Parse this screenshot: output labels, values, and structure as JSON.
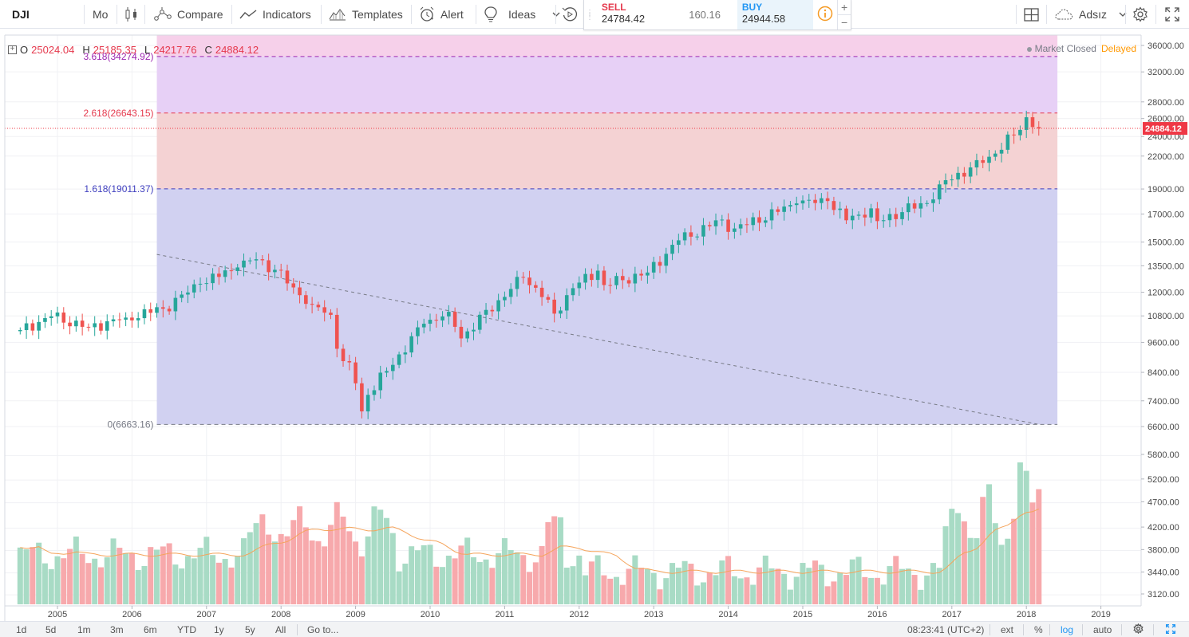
{
  "toolbar": {
    "symbol": "DJI",
    "interval": "Mo",
    "compare_label": "Compare",
    "indicators_label": "Indicators",
    "templates_label": "Templates",
    "alert_label": "Alert",
    "ideas_label": "Ideas",
    "account_label": "Adsız"
  },
  "trade": {
    "sell_label": "SELL",
    "sell_price": "24784.42",
    "spread": "160.16",
    "buy_label": "BUY",
    "buy_price": "24944.58",
    "plus": "+",
    "minus": "−"
  },
  "legend": {
    "o_label": "O",
    "o_value": "25024.04",
    "h_label": "H",
    "h_value": "25185.35",
    "l_label": "L",
    "l_value": "24217.76",
    "c_label": "C",
    "c_value": "24884.12",
    "toggle": "+"
  },
  "market_status": {
    "status": "Market Closed",
    "delay": "Delayed"
  },
  "colors": {
    "up": "#26a69a",
    "down": "#ef5350",
    "vol_up": "#a8dbc5",
    "vol_down": "#f7a9ac",
    "fib_blue": "#d1d1f1",
    "fib_salmon": "#f4d2d3",
    "fib_violet": "#e7d0f6",
    "fib_pink": "#f6d0ea",
    "ma": "#f5a45b",
    "last_price_bg": "#ef3846"
  },
  "chart_data": {
    "type": "candlestick",
    "symbol": "DJI",
    "interval": "Mo",
    "last_price": "24884.12",
    "price_axis_labels": [
      "36000.00",
      "32000.00",
      "28000.00",
      "26000.00",
      "24000.00",
      "22000.00",
      "19000.00",
      "17000.00",
      "15000.00",
      "13500.00",
      "12000.00",
      "10800.00",
      "9600.00",
      "8400.00",
      "7400.00",
      "6600.00",
      "5800.00",
      "5200.00",
      "4700.00",
      "4200.00",
      "3800.00",
      "3440.00",
      "3120.00"
    ],
    "price_ticks": [
      36000,
      32000,
      28000,
      26000,
      24000,
      22000,
      19000,
      17000,
      15000,
      13500,
      12000,
      10800,
      9600,
      8400,
      7400,
      6600,
      5800,
      5200,
      4700,
      4200,
      3800,
      3440,
      3120
    ],
    "price_axis_scale": "log",
    "x_tick_labels": [
      "2005",
      "2006",
      "2007",
      "2008",
      "2009",
      "2010",
      "2011",
      "2012",
      "2013",
      "2014",
      "2015",
      "2016",
      "2017",
      "2018",
      "2019"
    ],
    "x_ticks": [
      2005,
      2006,
      2007,
      2008,
      2009,
      2010,
      2011,
      2012,
      2013,
      2014,
      2015,
      2016,
      2017,
      2018,
      2019
    ],
    "fib_levels": [
      {
        "label": "3.618(34274.92)",
        "ratio": 3.618,
        "price": 34274.92
      },
      {
        "label": "2.618(26643.15)",
        "ratio": 2.618,
        "price": 26643.15
      },
      {
        "label": "1.618(19011.37)",
        "ratio": 1.618,
        "price": 19011.37
      },
      {
        "label": "0(6663.16)",
        "ratio": 0,
        "price": 6663.16
      }
    ],
    "trendline": {
      "from": [
        "2006-05",
        14200
      ],
      "to": [
        "2018-03",
        6663
      ]
    },
    "monthly_close_anchors": [
      [
        "2004-07",
        10140
      ],
      [
        "2004-12",
        10780
      ],
      [
        "2005-06",
        10270
      ],
      [
        "2005-12",
        10720
      ],
      [
        "2006-06",
        11150
      ],
      [
        "2006-12",
        12460
      ],
      [
        "2007-06",
        13400
      ],
      [
        "2007-09",
        13900
      ],
      [
        "2007-12",
        13260
      ],
      [
        "2008-03",
        12260
      ],
      [
        "2008-06",
        11350
      ],
      [
        "2008-09",
        10850
      ],
      [
        "2008-10",
        9330
      ],
      [
        "2008-11",
        8830
      ],
      [
        "2008-12",
        8780
      ],
      [
        "2009-01",
        8000
      ],
      [
        "2009-02",
        7060
      ],
      [
        "2009-03",
        7600
      ],
      [
        "2009-06",
        8450
      ],
      [
        "2009-12",
        10430
      ],
      [
        "2010-04",
        11000
      ],
      [
        "2010-06",
        9770
      ],
      [
        "2010-12",
        11580
      ],
      [
        "2011-04",
        12810
      ],
      [
        "2011-08",
        11610
      ],
      [
        "2011-09",
        10910
      ],
      [
        "2011-12",
        12220
      ],
      [
        "2012-04",
        13210
      ],
      [
        "2012-05",
        12390
      ],
      [
        "2012-12",
        13100
      ],
      [
        "2013-05",
        15120
      ],
      [
        "2013-12",
        16580
      ],
      [
        "2014-01",
        15700
      ],
      [
        "2014-12",
        17820
      ],
      [
        "2015-05",
        18010
      ],
      [
        "2015-08",
        16530
      ],
      [
        "2015-12",
        17430
      ],
      [
        "2016-01",
        16470
      ],
      [
        "2016-10",
        18140
      ],
      [
        "2016-12",
        19760
      ],
      [
        "2017-06",
        21350
      ],
      [
        "2017-12",
        24720
      ],
      [
        "2018-01",
        26150
      ],
      [
        "2018-02",
        25030
      ],
      [
        "2018-03",
        24884
      ]
    ],
    "volume_axis_note": "volume pane with moving average line",
    "time_range": [
      "2004-07",
      "2018-03"
    ]
  },
  "timeframes": [
    "1d",
    "5d",
    "1m",
    "3m",
    "6m",
    "YTD",
    "1y",
    "5y",
    "All"
  ],
  "goto_label": "Go to...",
  "footer": {
    "time": "08:23:41 (UTC+2)",
    "ext": "ext",
    "percent": "%",
    "log": "log",
    "auto": "auto"
  }
}
